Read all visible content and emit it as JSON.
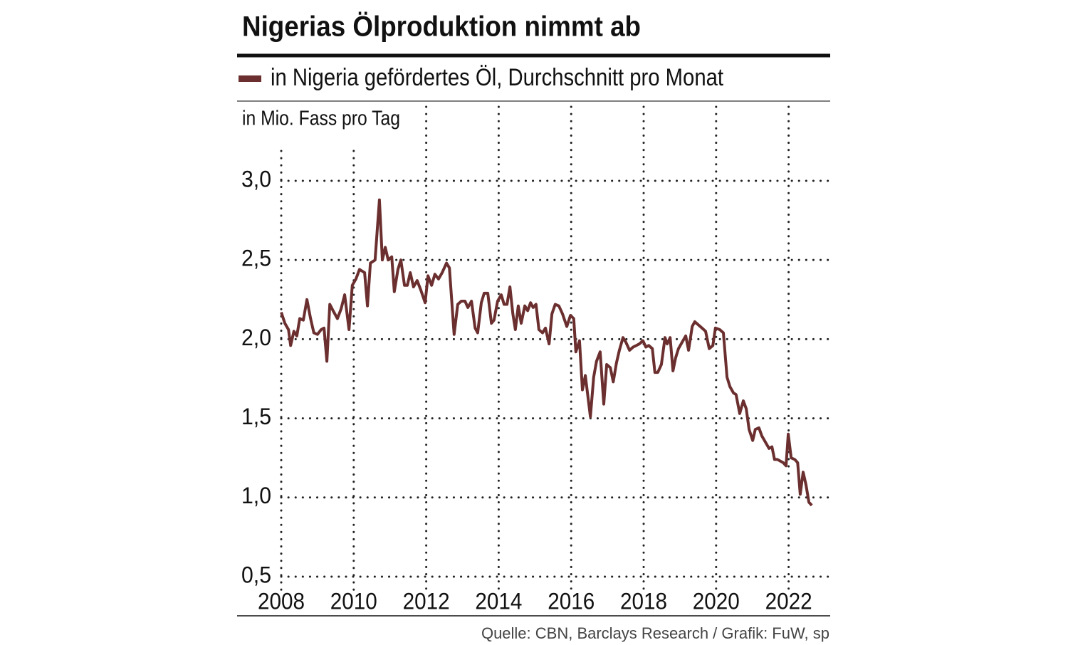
{
  "chart_data": {
    "type": "line",
    "title": "Nigerias Ölproduktion nimmt ab",
    "y_axis_label": "in Mio. Fass pro Tag",
    "source": "Quelle: CBN, Barclays Research  / Grafik: FuW, sp",
    "xlim": [
      2008,
      2023.1
    ],
    "xticks": [
      2008,
      2010,
      2012,
      2014,
      2016,
      2018,
      2020,
      2022
    ],
    "ylim": [
      0.5,
      3.2
    ],
    "yticks": [
      {
        "value": 0.5,
        "label": "0,5"
      },
      {
        "value": 1.0,
        "label": "1,0"
      },
      {
        "value": 1.5,
        "label": "1,5"
      },
      {
        "value": 2.0,
        "label": "2,0"
      },
      {
        "value": 2.5,
        "label": "2,5"
      },
      {
        "value": 3.0,
        "label": "3,0"
      }
    ],
    "grid": true,
    "series": [
      {
        "name": "in Nigeria gefördertes Öl, Durchschnitt pro Monat",
        "color": "#6b2f2f",
        "x": [
          2008.0,
          2008.1,
          2008.2,
          2008.26,
          2008.35,
          2008.43,
          2008.51,
          2008.61,
          2008.71,
          2008.81,
          2008.9,
          2009.0,
          2009.1,
          2009.18,
          2009.26,
          2009.34,
          2009.43,
          2009.55,
          2009.65,
          2009.75,
          2009.87,
          2009.96,
          2010.06,
          2010.16,
          2010.3,
          2010.38,
          2010.46,
          2010.59,
          2010.71,
          2010.79,
          2010.87,
          2010.95,
          2011.05,
          2011.12,
          2011.22,
          2011.3,
          2011.4,
          2011.48,
          2011.56,
          2011.65,
          2011.75,
          2011.85,
          2011.97,
          2012.05,
          2012.15,
          2012.24,
          2012.34,
          2012.44,
          2012.56,
          2012.64,
          2012.77,
          2012.87,
          2012.97,
          2013.07,
          2013.15,
          2013.25,
          2013.35,
          2013.42,
          2013.52,
          2013.6,
          2013.7,
          2013.8,
          2013.87,
          2013.97,
          2014.07,
          2014.15,
          2014.23,
          2014.31,
          2014.39,
          2014.46,
          2014.54,
          2014.62,
          2014.72,
          2014.8,
          2014.88,
          2014.95,
          2015.03,
          2015.11,
          2015.21,
          2015.29,
          2015.39,
          2015.47,
          2015.56,
          2015.66,
          2015.76,
          2015.88,
          2015.98,
          2016.07,
          2016.13,
          2016.23,
          2016.31,
          2016.39,
          2016.53,
          2016.62,
          2016.7,
          2016.8,
          2016.9,
          2016.98,
          2017.08,
          2017.16,
          2017.25,
          2017.33,
          2017.43,
          2017.51,
          2017.61,
          2017.71,
          2017.8,
          2017.88,
          2017.98,
          2018.06,
          2018.14,
          2018.24,
          2018.31,
          2018.39,
          2018.49,
          2018.59,
          2018.65,
          2018.73,
          2018.81,
          2018.88,
          2018.96,
          2019.06,
          2019.16,
          2019.24,
          2019.34,
          2019.41,
          2019.51,
          2019.61,
          2019.71,
          2019.81,
          2019.91,
          2019.98,
          2020.1,
          2020.2,
          2020.3,
          2020.38,
          2020.48,
          2020.55,
          2020.65,
          2020.75,
          2020.83,
          2020.91,
          2021.01,
          2021.08,
          2021.18,
          2021.26,
          2021.36,
          2021.46,
          2021.54,
          2021.61,
          2021.69,
          2021.77,
          2021.85,
          2021.93,
          2021.99,
          2022.07,
          2022.17,
          2022.25,
          2022.32,
          2022.4,
          2022.48,
          2022.56,
          2022.64
        ],
        "values": [
          2.17,
          2.1,
          2.06,
          1.96,
          2.05,
          2.02,
          2.13,
          2.12,
          2.25,
          2.13,
          2.04,
          2.03,
          2.06,
          2.07,
          1.86,
          2.22,
          2.18,
          2.13,
          2.19,
          2.28,
          2.06,
          2.34,
          2.38,
          2.44,
          2.42,
          2.21,
          2.48,
          2.5,
          2.88,
          2.5,
          2.58,
          2.5,
          2.52,
          2.3,
          2.44,
          2.5,
          2.34,
          2.34,
          2.42,
          2.33,
          2.37,
          2.31,
          2.23,
          2.4,
          2.34,
          2.41,
          2.38,
          2.42,
          2.48,
          2.45,
          2.03,
          2.22,
          2.24,
          2.24,
          2.2,
          2.24,
          2.07,
          2.04,
          2.23,
          2.29,
          2.29,
          2.1,
          2.12,
          2.24,
          2.28,
          2.22,
          2.22,
          2.33,
          2.16,
          2.06,
          2.21,
          2.1,
          2.21,
          2.18,
          2.23,
          2.2,
          2.22,
          2.06,
          2.04,
          2.07,
          1.97,
          2.16,
          2.22,
          2.21,
          2.16,
          2.08,
          2.15,
          2.13,
          1.92,
          1.99,
          1.68,
          1.77,
          1.51,
          1.76,
          1.86,
          1.92,
          1.59,
          1.84,
          1.82,
          1.73,
          1.85,
          1.93,
          2.01,
          1.98,
          1.93,
          1.95,
          1.96,
          1.97,
          1.99,
          1.95,
          1.96,
          1.94,
          1.79,
          1.79,
          1.84,
          2.01,
          1.97,
          2.01,
          1.8,
          1.88,
          1.94,
          1.98,
          2.02,
          1.93,
          2.08,
          2.11,
          2.09,
          2.07,
          2.05,
          1.94,
          1.96,
          2.07,
          2.06,
          2.04,
          1.76,
          1.7,
          1.66,
          1.65,
          1.53,
          1.61,
          1.56,
          1.43,
          1.36,
          1.43,
          1.44,
          1.39,
          1.35,
          1.31,
          1.32,
          1.24,
          1.24,
          1.23,
          1.22,
          1.2,
          1.4,
          1.25,
          1.24,
          1.22,
          1.02,
          1.16,
          1.08,
          0.97,
          0.95
        ]
      }
    ]
  }
}
